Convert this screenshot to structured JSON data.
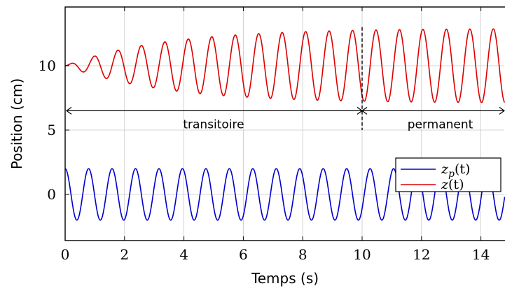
{
  "chart_data": {
    "type": "line",
    "xlabel": "Temps (s)",
    "ylabel": "Position (cm)",
    "xlim": [
      0,
      14.8
    ],
    "ylim": [
      -3.6,
      14.6
    ],
    "xticks": [
      {
        "value": 0,
        "label": "0"
      },
      {
        "value": 2,
        "label": "2"
      },
      {
        "value": 4,
        "label": "4"
      },
      {
        "value": 6,
        "label": "6"
      },
      {
        "value": 8,
        "label": "8"
      },
      {
        "value": 10,
        "label": "10"
      },
      {
        "value": 12,
        "label": "12"
      },
      {
        "value": 14,
        "label": "14"
      }
    ],
    "yticks": [
      {
        "value": 0,
        "label": "0"
      },
      {
        "value": 5,
        "label": "5"
      },
      {
        "value": 10,
        "label": "10"
      }
    ],
    "grid": true,
    "legend_position": "right",
    "series": [
      {
        "name": "z_p(t)",
        "legend_main": "z",
        "legend_sub": "p",
        "legend_tail": "(t)",
        "color": "#0000cc",
        "x": [
          0,
          0.5,
          1,
          1.5,
          2,
          2.5,
          3,
          3.5,
          4,
          4.5,
          5,
          5.5,
          6,
          6.5,
          7,
          7.5,
          8,
          8.5,
          9,
          9.5,
          10,
          10.5,
          11,
          11.5,
          12,
          12.5,
          13,
          13.5,
          14,
          14.5,
          14.8
        ],
        "y": [
          2,
          -1.2,
          -1.2,
          2,
          -1.2,
          -1.2,
          2,
          -1.2,
          -1.2,
          2,
          -1.2,
          -1.2,
          2,
          -1.2,
          -1.2,
          2,
          -1.2,
          -1.2,
          2,
          -1.2,
          -1.2,
          2,
          -1.2,
          -1.2,
          2,
          -1.2,
          -1.2,
          2,
          -1.2,
          -1.2,
          0
        ],
        "amplitude": 2,
        "offset": 0,
        "period": 0.79
      },
      {
        "name": "z(t)",
        "legend_main": "z",
        "legend_sub": "",
        "legend_tail": "(t)",
        "color": "#dd0000",
        "x": [
          0,
          1,
          2,
          3,
          4,
          5,
          6,
          7,
          8,
          9,
          10,
          11,
          12,
          13,
          14,
          14.8
        ],
        "y_upper": [
          10,
          10.4,
          10.9,
          11.3,
          11.6,
          11.9,
          12.1,
          12.3,
          12.4,
          12.5,
          12.6,
          12.8,
          12.8,
          12.9,
          12.9,
          12.9
        ],
        "y_lower": [
          10,
          9.6,
          9.1,
          8.6,
          8.2,
          7.9,
          7.7,
          7.5,
          7.4,
          7.3,
          7.3,
          7.1,
          7.1,
          7.1,
          7.1,
          7.1
        ],
        "offset": 10,
        "final_amplitude": 2.9,
        "time_constant": 3.3,
        "period": 0.79
      }
    ],
    "annotations": {
      "divider_x": 10,
      "arrow_y": 6.5,
      "transient_label": "transitoire",
      "steady_label": "permanent"
    }
  }
}
